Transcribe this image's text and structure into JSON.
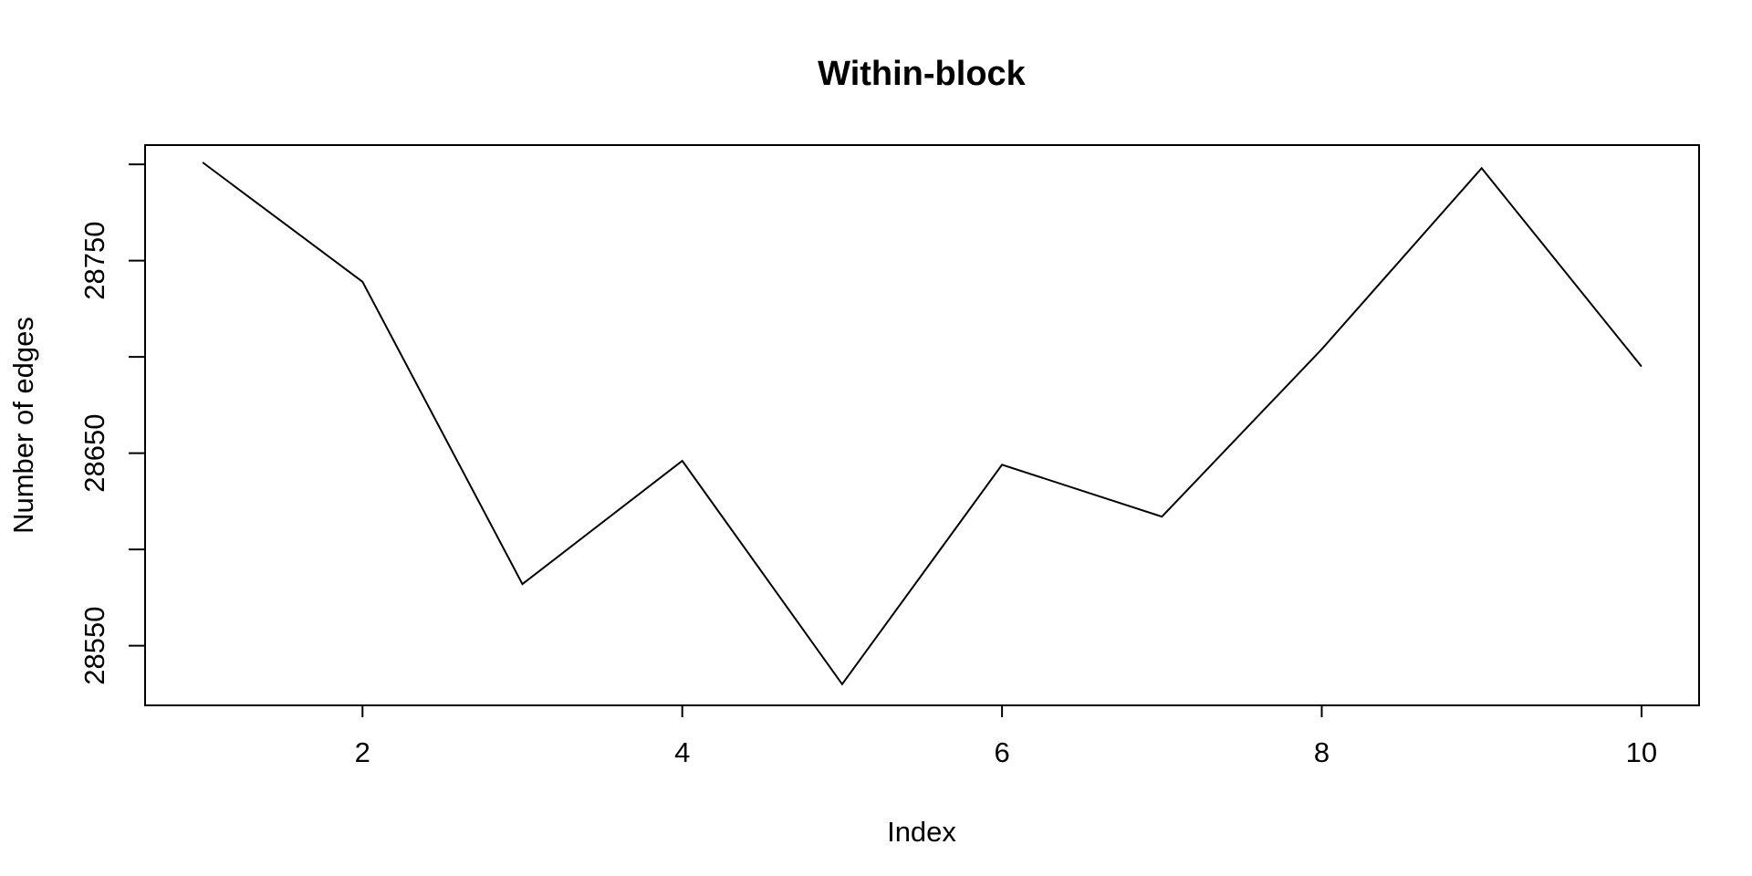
{
  "chart_data": {
    "type": "line",
    "title": "Within-block",
    "xlabel": "Index",
    "ylabel": "Number of edges",
    "x": [
      1,
      2,
      3,
      4,
      5,
      6,
      7,
      8,
      9,
      10
    ],
    "series": [
      {
        "values": [
          28801,
          28739,
          28582,
          28646,
          28530,
          28644,
          28617,
          28704,
          28798,
          28695
        ]
      }
    ],
    "x_ticks": [
      2,
      4,
      6,
      8,
      10
    ],
    "y_ticks": [
      28550,
      28600,
      28650,
      28700,
      28750,
      28800
    ],
    "y_tick_labels": [
      "28550",
      "",
      "28650",
      "",
      "28750",
      ""
    ],
    "xlim": [
      0.64,
      10.36
    ],
    "ylim": [
      28519,
      28810
    ],
    "grid": false,
    "legend": "none",
    "line_color": "#000000"
  }
}
